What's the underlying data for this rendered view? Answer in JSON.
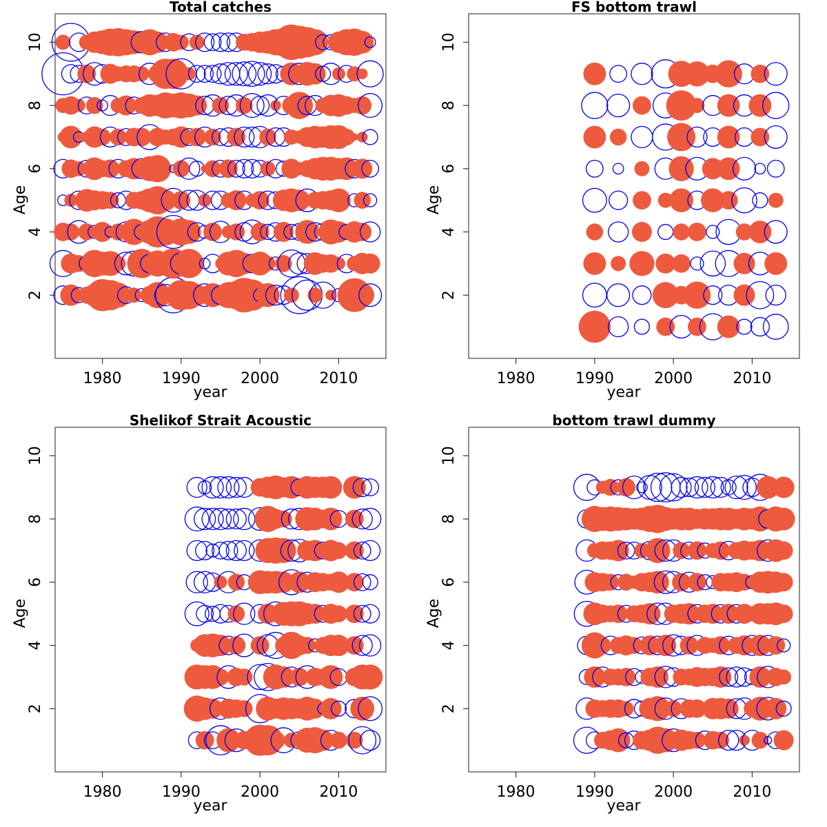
{
  "colors": {
    "positive": "#EE5A3E",
    "negative": "#0000EE"
  },
  "chart_data": [
    {
      "type": "bubble",
      "title": "Total catches",
      "xlabel": "year",
      "ylabel": "Age",
      "xlim": [
        1974,
        2016
      ],
      "ylim": [
        0,
        10.9
      ],
      "xticks": [
        1980,
        1990,
        2000,
        2010
      ],
      "yticks": [
        2,
        4,
        6,
        8,
        10
      ],
      "ages": [
        2,
        3,
        4,
        5,
        6,
        7,
        8,
        9,
        10
      ],
      "x_start": 1975,
      "x_end": 2014,
      "residuals": [
        [
          -0.6,
          0.8,
          -0.4,
          0.5,
          0.9,
          1.8,
          1.6,
          1.1,
          -0.5,
          0.4,
          -0.3,
          0.6,
          1.2,
          -0.8,
          -2.2,
          1.6,
          1.4,
          0.8,
          -0.9,
          1.0,
          -0.6,
          1.2,
          1.4,
          2.1,
          1.7,
          -0.3,
          1.0,
          -0.7,
          -0.6,
          0.4,
          -2.4,
          -1.6,
          0.4,
          -1.2,
          0.2,
          -0.3,
          0.5,
          2.0,
          1.0,
          -0.9
        ],
        [
          -1.2,
          0.7,
          0.5,
          -0.4,
          1.3,
          1.0,
          1.1,
          0.4,
          -0.9,
          -1.1,
          1.5,
          -0.6,
          1.2,
          1.0,
          1.6,
          -0.8,
          1.5,
          0.3,
          -0.2,
          -0.6,
          0.2,
          1.0,
          1.3,
          0.8,
          -0.6,
          1.0,
          0.4,
          -0.3,
          0.5,
          -1.3,
          -0.8,
          -0.7,
          0.9,
          0.6,
          0.6,
          0.3,
          -0.6,
          0.4,
          0.8,
          0.7
        ],
        [
          0.6,
          0.5,
          -0.9,
          0.5,
          -0.3,
          0.7,
          -0.2,
          0.5,
          -0.7,
          1.2,
          -0.4,
          1.0,
          1.7,
          1.3,
          -1.9,
          1.3,
          1.0,
          -0.6,
          -0.3,
          0.6,
          -0.8,
          0.3,
          0.5,
          -0.6,
          -1.0,
          0.6,
          -0.4,
          -0.6,
          0.7,
          -0.4,
          -0.5,
          1.0,
          -0.6,
          -0.5,
          1.1,
          0.8,
          -0.4,
          0.8,
          0.6,
          -0.7
        ],
        [
          -0.2,
          0.3,
          -0.6,
          0.9,
          0.7,
          0.6,
          0.5,
          -0.4,
          -0.6,
          0.5,
          0.6,
          1.0,
          1.4,
          0.8,
          -1.0,
          0.6,
          -0.7,
          -0.7,
          0.3,
          -0.6,
          -0.6,
          0.4,
          0.7,
          -0.6,
          0.3,
          0.6,
          -0.6,
          -0.5,
          0.8,
          1.0,
          0.8,
          -0.9,
          0.5,
          0.6,
          0.7,
          1.0,
          0.1,
          -0.3,
          0.5,
          -0.3
        ],
        [
          -0.6,
          0.6,
          0.4,
          -0.5,
          0.9,
          0.5,
          0.6,
          -0.6,
          0.5,
          0.8,
          -0.7,
          1.1,
          1.3,
          0.3,
          -0.1,
          0.5,
          -0.8,
          -0.4,
          0.1,
          0.5,
          -0.5,
          0.6,
          -0.5,
          -0.6,
          -0.6,
          -0.5,
          0.4,
          -0.6,
          -0.4,
          0.7,
          0.3,
          0.5,
          0.8,
          1.0,
          1.0,
          0.8,
          0.9,
          -0.6,
          0.7,
          -0.5
        ],
        [
          0.2,
          0.9,
          -0.2,
          0.2,
          0.8,
          0.5,
          -0.7,
          0.5,
          -0.5,
          0.6,
          0.6,
          -1.1,
          0.6,
          0.4,
          0.5,
          0.8,
          -0.5,
          0.6,
          -0.7,
          0.5,
          -0.5,
          -0.6,
          0.6,
          -0.7,
          -0.7,
          -0.8,
          0.5,
          -0.6,
          -0.6,
          0.4,
          0.3,
          0.7,
          0.9,
          0.8,
          1.0,
          1.0,
          0.5,
          0.1,
          0.2,
          -0.4
        ],
        [
          0.4,
          0.6,
          0.3,
          -0.5,
          0.5,
          -0.2,
          -0.7,
          0.4,
          0.7,
          -0.5,
          0.5,
          0.9,
          0.8,
          1.2,
          1.0,
          1.2,
          1.0,
          0.7,
          -0.6,
          -0.8,
          0.5,
          -0.6,
          -0.8,
          0.5,
          -1.0,
          -0.6,
          -0.8,
          0.2,
          -0.6,
          0.6,
          1.3,
          -0.6,
          -0.7,
          0.4,
          0.8,
          0.9,
          0.6,
          0.4,
          0.6,
          -1.0
        ],
        [
          -3.1,
          -0.6,
          -0.5,
          0.6,
          -0.9,
          -0.6,
          0.7,
          0.4,
          0.5,
          0.5,
          0.4,
          -0.8,
          0.6,
          1.6,
          1.6,
          -1.6,
          0.3,
          -0.5,
          -0.5,
          -0.5,
          -0.7,
          -0.9,
          -0.9,
          -1.0,
          -1.1,
          -0.9,
          -0.7,
          -0.6,
          -0.4,
          0.9,
          -0.8,
          1.0,
          0.8,
          -0.4,
          -0.8,
          0.3,
          -0.5,
          0.4,
          0.2,
          -1.2
        ],
        [
          0.4,
          -2.5,
          -0.6,
          0.4,
          0.8,
          1.0,
          1.3,
          1.4,
          1.2,
          1.0,
          -0.8,
          1.2,
          0.8,
          -0.6,
          0.6,
          0.4,
          -0.5,
          0.4,
          -0.6,
          -0.5,
          -0.6,
          -0.6,
          -0.6,
          0.5,
          0.6,
          0.8,
          0.9,
          1.2,
          1.4,
          2.2,
          1.9,
          1.6,
          1.2,
          -0.4,
          -0.4,
          0.8,
          1.2,
          1.3,
          0.9,
          -0.2
        ]
      ]
    },
    {
      "type": "bubble",
      "title": "FS bottom trawl",
      "xlabel": "year",
      "ylabel": "Age",
      "xlim": [
        1974,
        2016
      ],
      "ylim": [
        0,
        10.9
      ],
      "xticks": [
        1980,
        1990,
        2000,
        2010
      ],
      "yticks": [
        2,
        4,
        6,
        8,
        10
      ],
      "ages": [
        1,
        2,
        3,
        4,
        5,
        6,
        7,
        8,
        9
      ],
      "years": [
        1990,
        1993,
        1996,
        1999,
        2001,
        2003,
        2005,
        2007,
        2009,
        2011,
        2013
      ],
      "residuals": [
        [
          1.8,
          -0.7,
          -0.4,
          0.6,
          -0.9,
          0.6,
          -1.2,
          0.9,
          -0.4,
          -0.6,
          -1.1
        ],
        [
          -1.0,
          -0.9,
          -0.6,
          1.2,
          0.6,
          1.3,
          -0.6,
          -0.7,
          0.8,
          -1.3,
          -0.7
        ],
        [
          0.9,
          0.4,
          1.1,
          0.7,
          0.6,
          -0.3,
          -1.1,
          -1.2,
          0.8,
          -0.9,
          0.9
        ],
        [
          0.5,
          -0.7,
          0.7,
          -0.4,
          0.5,
          0.6,
          -0.3,
          -1.1,
          0.5,
          0.9,
          -0.9
        ],
        [
          -1.0,
          -0.6,
          0.6,
          0.4,
          1.0,
          -0.6,
          1.0,
          0.6,
          -1.1,
          -0.4,
          0.4
        ],
        [
          -0.5,
          -0.2,
          0.4,
          -0.8,
          1.1,
          -0.9,
          0.8,
          0.9,
          -0.9,
          -0.2,
          -0.5
        ],
        [
          0.9,
          0.5,
          -0.8,
          -1.2,
          1.4,
          -0.7,
          -0.6,
          0.9,
          -0.6,
          0.6,
          -0.9
        ],
        [
          -1.2,
          -0.9,
          0.6,
          -1.1,
          1.6,
          0.4,
          -0.7,
          0.9,
          -0.8,
          0.9,
          -1.2
        ],
        [
          0.9,
          -0.5,
          -0.8,
          -1.4,
          1.2,
          1.1,
          0.6,
          1.3,
          -0.7,
          0.6,
          -0.9
        ]
      ]
    },
    {
      "type": "bubble",
      "title": "Shelikof Strait Acoustic",
      "xlabel": "year",
      "ylabel": "Age",
      "xlim": [
        1974,
        2016
      ],
      "ylim": [
        0,
        10.9
      ],
      "xticks": [
        1980,
        1990,
        2000,
        2010
      ],
      "yticks": [
        2,
        4,
        6,
        8,
        10
      ],
      "ages": [
        1,
        2,
        3,
        4,
        5,
        6,
        7,
        8,
        9
      ],
      "years": [
        1992,
        1993,
        1994,
        1995,
        1996,
        1997,
        1998,
        2000,
        2001,
        2002,
        2003,
        2004,
        2005,
        2006,
        2007,
        2008,
        2009,
        2010,
        2012,
        2013,
        2014
      ],
      "residuals": [
        [
          -0.5,
          0.6,
          -0.5,
          -1.5,
          1.0,
          -0.9,
          0.6,
          1.7,
          1.6,
          0.6,
          -1.1,
          0.4,
          -0.5,
          1.1,
          1.2,
          0.8,
          -0.7,
          0.5,
          0.5,
          -1.3,
          -0.7
        ],
        [
          1.2,
          0.9,
          0.7,
          -0.8,
          0.7,
          0.6,
          0.5,
          -1.4,
          1.0,
          0.7,
          0.9,
          0.8,
          0.7,
          1.0,
          0.7,
          -0.2,
          0.8,
          -0.4,
          -0.6,
          1.0,
          -1.0
        ],
        [
          1.1,
          1.0,
          1.0,
          0.5,
          -0.9,
          0.6,
          0.5,
          -1.1,
          -1.3,
          1.1,
          0.8,
          -0.7,
          0.6,
          -0.9,
          0.6,
          0.5,
          1.0,
          -0.5,
          0.6,
          1.1,
          1.1
        ],
        [
          0.3,
          0.9,
          1.0,
          0.8,
          -0.6,
          0.6,
          -0.9,
          0.6,
          -0.8,
          -1.2,
          0.5,
          1.3,
          0.7,
          0.5,
          -0.3,
          0.5,
          0.8,
          0.8,
          0.6,
          -0.7,
          -0.8
        ],
        [
          -1.0,
          -0.5,
          -0.4,
          -0.6,
          -0.5,
          0.5,
          -0.8,
          -0.6,
          0.7,
          -1.0,
          1.0,
          1.1,
          1.1,
          0.8,
          0.7,
          -0.5,
          0.7,
          0.5,
          0.6,
          -0.5,
          -0.6
        ],
        [
          -0.8,
          -0.8,
          -0.6,
          0.3,
          -0.8,
          0.5,
          -0.4,
          1.0,
          0.9,
          0.9,
          0.8,
          -1.1,
          0.8,
          -0.7,
          0.7,
          0.6,
          0.5,
          0.8,
          0.6,
          -0.5,
          -0.4
        ],
        [
          -0.7,
          -0.6,
          -0.3,
          -0.5,
          -0.6,
          -0.7,
          -0.7,
          -0.8,
          1.1,
          1.2,
          1.1,
          -0.8,
          -0.9,
          0.7,
          0.8,
          -0.5,
          0.8,
          0.5,
          0.6,
          -0.5,
          -0.7
        ],
        [
          -1.0,
          -0.8,
          -0.8,
          -0.8,
          -0.7,
          -0.7,
          -0.8,
          -0.9,
          1.2,
          0.7,
          0.5,
          -0.7,
          -0.8,
          1.0,
          0.9,
          0.6,
          0.9,
          -0.5,
          0.6,
          -0.7,
          -0.8
        ],
        [
          -0.7,
          -0.3,
          -0.8,
          -0.8,
          -0.8,
          -0.7,
          -0.7,
          0.6,
          0.8,
          1.0,
          0.7,
          0.9,
          -0.5,
          0.9,
          0.8,
          0.8,
          0.9,
          0.0,
          0.9,
          -0.6,
          -0.5
        ]
      ]
    },
    {
      "type": "bubble",
      "title": "bottom trawl dummy",
      "xlabel": "year",
      "ylabel": "Age",
      "xlim": [
        1974,
        2016
      ],
      "ylim": [
        0,
        10.9
      ],
      "xticks": [
        1980,
        1990,
        2000,
        2010
      ],
      "yticks": [
        2,
        4,
        6,
        8,
        10
      ],
      "ages": [
        1,
        2,
        3,
        4,
        5,
        6,
        7,
        8,
        9
      ],
      "x_start": 1989,
      "x_end": 2014,
      "residuals": [
        [
          -1.2,
          -0.5,
          0.5,
          0.7,
          1.0,
          -0.4,
          -0.6,
          0.6,
          0.8,
          1.3,
          1.0,
          -0.9,
          0.8,
          0.6,
          0.5,
          -0.6,
          0.6,
          0.5,
          -0.7,
          -0.7,
          0.2,
          -0.7,
          0.5,
          -0.1,
          -0.5,
          0.7
        ],
        [
          -0.8,
          0.6,
          0.5,
          0.6,
          0.6,
          0.4,
          -0.6,
          -0.4,
          0.8,
          1.1,
          -0.8,
          0.5,
          -0.7,
          0.6,
          0.6,
          0.2,
          0.8,
          0.8,
          0.7,
          -0.7,
          -0.8,
          0.5,
          1.0,
          -0.9,
          0.8,
          -0.4
        ],
        [
          -0.4,
          0.8,
          -0.7,
          0.5,
          0.5,
          0.6,
          -0.5,
          -0.3,
          0.6,
          0.8,
          -0.8,
          -0.6,
          0.5,
          0.5,
          0.7,
          0.6,
          0.6,
          0.8,
          -0.6,
          -0.7,
          -0.6,
          -0.4,
          0.8,
          -0.8,
          0.6,
          0.4
        ],
        [
          -0.6,
          1.2,
          0.5,
          -0.6,
          0.5,
          0.7,
          0.5,
          -0.5,
          0.7,
          -0.6,
          0.8,
          -0.8,
          -0.6,
          0.6,
          -0.7,
          0.5,
          0.4,
          0.6,
          -0.6,
          0.5,
          0.7,
          -0.7,
          0.8,
          -0.7,
          0.6,
          -0.3
        ],
        [
          -1.1,
          0.9,
          0.6,
          0.5,
          0.6,
          -0.5,
          0.5,
          0.6,
          0.8,
          -0.8,
          -0.8,
          0.6,
          0.7,
          0.8,
          -0.6,
          0.6,
          0.7,
          -0.6,
          0.7,
          -0.6,
          0.7,
          0.4,
          0.8,
          0.8,
          0.9,
          0.6
        ],
        [
          -1.0,
          0.7,
          0.6,
          0.5,
          -0.4,
          0.5,
          0.3,
          0.6,
          0.7,
          0.9,
          -0.9,
          -0.8,
          0.6,
          -0.7,
          0.6,
          -0.4,
          -0.3,
          0.6,
          0.6,
          0.7,
          0.5,
          -0.3,
          0.8,
          0.9,
          0.8,
          0.6
        ],
        [
          -0.8,
          0.4,
          0.6,
          0.6,
          0.8,
          -0.5,
          -0.5,
          0.4,
          -0.6,
          1.1,
          -0.8,
          -0.8,
          0.5,
          -0.5,
          0.6,
          -0.4,
          0.4,
          0.6,
          -0.6,
          0.5,
          0.7,
          0.6,
          0.8,
          -0.8,
          0.9,
          0.6
        ],
        [
          -0.6,
          1.2,
          1.0,
          1.1,
          1.0,
          0.9,
          0.8,
          0.9,
          1.2,
          1.4,
          1.0,
          0.8,
          0.9,
          0.9,
          0.7,
          0.8,
          0.8,
          0.9,
          0.9,
          0.7,
          0.9,
          0.8,
          1.1,
          -0.6,
          1.1,
          0.9
        ],
        [
          -1.2,
          -0.4,
          0.3,
          0.5,
          -0.4,
          0.6,
          -0.9,
          -0.2,
          -1.0,
          -1.4,
          -1.5,
          -1.3,
          -0.7,
          -0.6,
          -0.8,
          -0.7,
          -0.8,
          -0.7,
          -0.4,
          -0.9,
          -1.0,
          -0.6,
          -1.2,
          0.9,
          0.3,
          0.8
        ]
      ]
    }
  ]
}
